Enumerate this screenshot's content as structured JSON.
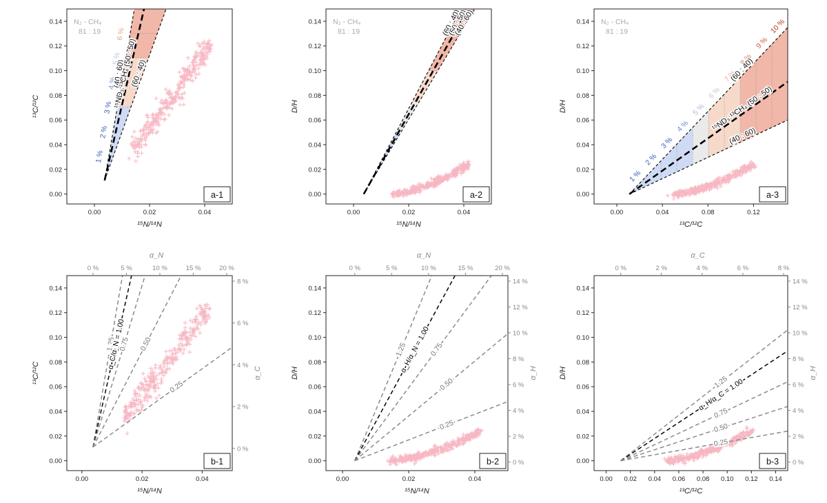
{
  "figure": {
    "colors": {
      "blue_fill": "#c7d5f3",
      "gray_fill": "#e6e6e6",
      "peach_fill": "#f6d2c1",
      "red_fill": "#eeaa9a",
      "data_pink": "#f7b6c2",
      "contour_gray": "#8a8a8a",
      "black": "#000000"
    },
    "legend_text": [
      "N₂ - CH₄",
      "81 : 19"
    ]
  },
  "chart_data": [
    {
      "id": "a-1",
      "type": "scatter",
      "panel_label": "a-1",
      "xlabel": "¹⁵N/¹⁴N",
      "ylabel": "¹³C/¹²C",
      "xlim": [
        -0.01,
        0.05
      ],
      "ylim": [
        -0.008,
        0.15
      ],
      "xticks": [
        "0.00",
        "0.02",
        "0.04"
      ],
      "xtick_values": [
        0,
        0.02,
        0.04
      ],
      "yticks": [
        "0.00",
        "0.02",
        "0.04",
        "0.06",
        "0.08",
        "0.10",
        "0.12",
        "0.14"
      ],
      "ytick_values": [
        0,
        0.02,
        0.04,
        0.06,
        0.08,
        0.1,
        0.12,
        0.14
      ],
      "legend": [
        "N₂ - CH₄",
        "81 : 19"
      ],
      "origin": [
        0.0037,
        0.0111
      ],
      "mixing_lines": [
        {
          "label": "(40 : 60)",
          "end": [
            0.0145,
            0.15
          ],
          "style": "dashed"
        },
        {
          "label": "¹⁵ND₃:¹³CH₄ (50 : 50)",
          "end": [
            0.018,
            0.15
          ],
          "style": "bold-dashed"
        },
        {
          "label": "(60 : 40)",
          "end": [
            0.026,
            0.15
          ],
          "style": "dashed"
        }
      ],
      "percent_bands": [
        "1 %",
        "2 %",
        "3 %",
        "4 %",
        "5 %",
        "6 %"
      ],
      "scatter_cloud": {
        "x_range": [
          0.014,
          0.042
        ],
        "y_range": [
          0.035,
          0.122
        ]
      }
    },
    {
      "id": "a-2",
      "type": "scatter",
      "panel_label": "a-2",
      "xlabel": "¹⁵N/¹⁴N",
      "ylabel": "D/H",
      "xlim": [
        -0.01,
        0.05
      ],
      "ylim": [
        -0.008,
        0.15
      ],
      "xticks": [
        "0.00",
        "0.02",
        "0.04"
      ],
      "xtick_values": [
        0,
        0.02,
        0.04
      ],
      "yticks": [
        "0.00",
        "0.02",
        "0.04",
        "0.06",
        "0.08",
        "0.10",
        "0.12",
        "0.14"
      ],
      "ytick_values": [
        0,
        0.02,
        0.04,
        0.06,
        0.08,
        0.1,
        0.12,
        0.14
      ],
      "legend": [
        "N₂ - CH₄",
        "81 : 19"
      ],
      "origin": [
        0.0037,
        0.0
      ],
      "mixing_lines": [
        {
          "label": "(60 : 40)",
          "end": [
            0.039,
            0.15
          ],
          "style": "dashed"
        },
        {
          "label": "(50 : 50)",
          "end": [
            0.0415,
            0.15
          ],
          "style": "bold-dashed"
        },
        {
          "label": "(40 : 60)",
          "end": [
            0.044,
            0.15
          ],
          "style": "dashed"
        }
      ],
      "scatter_cloud": {
        "x_range": [
          0.014,
          0.042
        ],
        "y_range": [
          0.0,
          0.024
        ]
      }
    },
    {
      "id": "a-3",
      "type": "scatter",
      "panel_label": "a-3",
      "xlabel": "¹³C/¹²C",
      "ylabel": "D/H",
      "xlim": [
        -0.02,
        0.15
      ],
      "ylim": [
        -0.008,
        0.15
      ],
      "xticks": [
        "0.00",
        "0.04",
        "0.08",
        "0.12"
      ],
      "xtick_values": [
        0,
        0.04,
        0.08,
        0.12
      ],
      "yticks": [
        "0.00",
        "0.02",
        "0.04",
        "0.06",
        "0.08",
        "0.10",
        "0.12",
        "0.14"
      ],
      "ytick_values": [
        0,
        0.02,
        0.04,
        0.06,
        0.08,
        0.1,
        0.12,
        0.14
      ],
      "legend": [
        "N₂ - CH₄",
        "81 : 19"
      ],
      "origin": [
        0.011,
        0.0
      ],
      "mixing_lines": [
        {
          "label": "(60 : 40)",
          "end": [
            0.15,
            0.135
          ],
          "style": "dashed"
        },
        {
          "label": "¹⁵ND₃:¹³CH₄ (50 : 50)",
          "end": [
            0.15,
            0.091
          ],
          "style": "bold-dashed"
        },
        {
          "label": "(40 : 60)",
          "end": [
            0.15,
            0.06
          ],
          "style": "dashed"
        }
      ],
      "percent_bands": [
        "1 %",
        "2 %",
        "3 %",
        "4 %",
        "5 %",
        "6 %",
        "7 %",
        "8 %",
        "9 %",
        "10 %"
      ],
      "scatter_cloud": {
        "x_range": [
          0.05,
          0.12
        ],
        "y_range": [
          0.0,
          0.024
        ]
      }
    },
    {
      "id": "b-1",
      "type": "scatter",
      "panel_label": "b-1",
      "xlabel": "¹⁵N/¹⁴N",
      "ylabel": "¹³C/¹²C",
      "top_label": "α_N",
      "right_label": "α_C",
      "xlim": [
        -0.005,
        0.05
      ],
      "ylim": [
        -0.008,
        0.15
      ],
      "xticks": [
        "0.00",
        "0.02",
        "0.04"
      ],
      "xtick_values": [
        0,
        0.02,
        0.04
      ],
      "yticks": [
        "0.00",
        "0.02",
        "0.04",
        "0.06",
        "0.08",
        "0.10",
        "0.12",
        "0.14"
      ],
      "ytick_values": [
        0,
        0.02,
        0.04,
        0.06,
        0.08,
        0.1,
        0.12,
        0.14
      ],
      "top_ticks": [
        "0 %",
        "5 %",
        "10 %",
        "15 %",
        "20 %"
      ],
      "right_ticks": [
        "0 %",
        "2 %",
        "4 %",
        "6 %",
        "8 %"
      ],
      "origin": [
        0.0037,
        0.0111
      ],
      "contours": [
        {
          "label": "1.25",
          "end": [
            0.0135,
            0.15
          ],
          "highlight": false
        },
        {
          "label": "α_C/α_N = 1.00",
          "end": [
            0.0165,
            0.15
          ],
          "highlight": true
        },
        {
          "label": "0.75",
          "end": [
            0.021,
            0.15
          ],
          "highlight": false
        },
        {
          "label": "0.50",
          "end": [
            0.033,
            0.15
          ],
          "highlight": false
        },
        {
          "label": "0.25",
          "end": [
            0.05,
            0.092
          ],
          "highlight": false
        }
      ],
      "scatter_cloud": {
        "x_range": [
          0.014,
          0.042
        ],
        "y_range": [
          0.035,
          0.122
        ]
      }
    },
    {
      "id": "b-2",
      "type": "scatter",
      "panel_label": "b-2",
      "xlabel": "¹⁵N/¹⁴N",
      "ylabel": "D/H",
      "top_label": "α_N",
      "right_label": "α_H",
      "xlim": [
        -0.005,
        0.05
      ],
      "ylim": [
        -0.008,
        0.15
      ],
      "xticks": [
        "0.00",
        "0.02",
        "0.04"
      ],
      "xtick_values": [
        0,
        0.02,
        0.04
      ],
      "yticks": [
        "0.00",
        "0.02",
        "0.04",
        "0.06",
        "0.08",
        "0.10",
        "0.12",
        "0.14"
      ],
      "ytick_values": [
        0,
        0.02,
        0.04,
        0.06,
        0.08,
        0.1,
        0.12,
        0.14
      ],
      "top_ticks": [
        "0 %",
        "5 %",
        "10 %",
        "15 %",
        "20 %"
      ],
      "right_ticks": [
        "0 %",
        "2 %",
        "4 %",
        "6 %",
        "8 %",
        "10 %",
        "12 %",
        "14 %"
      ],
      "origin": [
        0.0037,
        0.0
      ],
      "contours": [
        {
          "label": "1.25",
          "end": [
            0.027,
            0.15
          ],
          "highlight": false
        },
        {
          "label": "α_H/α_N = 1.00",
          "end": [
            0.034,
            0.15
          ],
          "highlight": true
        },
        {
          "label": "0.75",
          "end": [
            0.045,
            0.15
          ],
          "highlight": false
        },
        {
          "label": "0.50",
          "end": [
            0.05,
            0.103
          ],
          "highlight": false
        },
        {
          "label": "0.25",
          "end": [
            0.05,
            0.048
          ],
          "highlight": false
        }
      ],
      "scatter_cloud": {
        "x_range": [
          0.014,
          0.042
        ],
        "y_range": [
          0.0,
          0.024
        ]
      }
    },
    {
      "id": "b-3",
      "type": "scatter",
      "panel_label": "b-3",
      "xlabel": "¹³C/¹²C",
      "ylabel": "D/H",
      "top_label": "α_C",
      "right_label": "α_H",
      "xlim": [
        -0.01,
        0.15
      ],
      "ylim": [
        -0.008,
        0.15
      ],
      "xticks": [
        "0.00",
        "0.02",
        "0.04",
        "0.06",
        "0.08",
        "0.10",
        "0.12",
        "0.14"
      ],
      "xtick_values": [
        0,
        0.02,
        0.04,
        0.06,
        0.08,
        0.1,
        0.12,
        0.14
      ],
      "yticks": [
        "0.00",
        "0.02",
        "0.04",
        "0.06",
        "0.08",
        "0.10",
        "0.12",
        "0.14"
      ],
      "ytick_values": [
        0,
        0.02,
        0.04,
        0.06,
        0.08,
        0.1,
        0.12,
        0.14
      ],
      "top_ticks": [
        "0 %",
        "2 %",
        "4 %",
        "6 %",
        "8 %"
      ],
      "right_ticks": [
        "0 %",
        "2 %",
        "4 %",
        "6 %",
        "8 %",
        "10 %",
        "12 %",
        "14 %"
      ],
      "origin": [
        0.012,
        0.0
      ],
      "contours": [
        {
          "label": "1.25",
          "end": [
            0.15,
            0.106
          ],
          "highlight": false
        },
        {
          "label": "α_H/α_C = 1.00",
          "end": [
            0.15,
            0.089
          ],
          "highlight": true
        },
        {
          "label": "0.75",
          "end": [
            0.15,
            0.064
          ],
          "highlight": false
        },
        {
          "label": "0.50",
          "end": [
            0.15,
            0.044
          ],
          "highlight": false
        },
        {
          "label": "0.25",
          "end": [
            0.15,
            0.024
          ],
          "highlight": false
        }
      ],
      "scatter_cloud": {
        "x_range": [
          0.05,
          0.12
        ],
        "y_range": [
          0.0,
          0.024
        ]
      }
    }
  ]
}
